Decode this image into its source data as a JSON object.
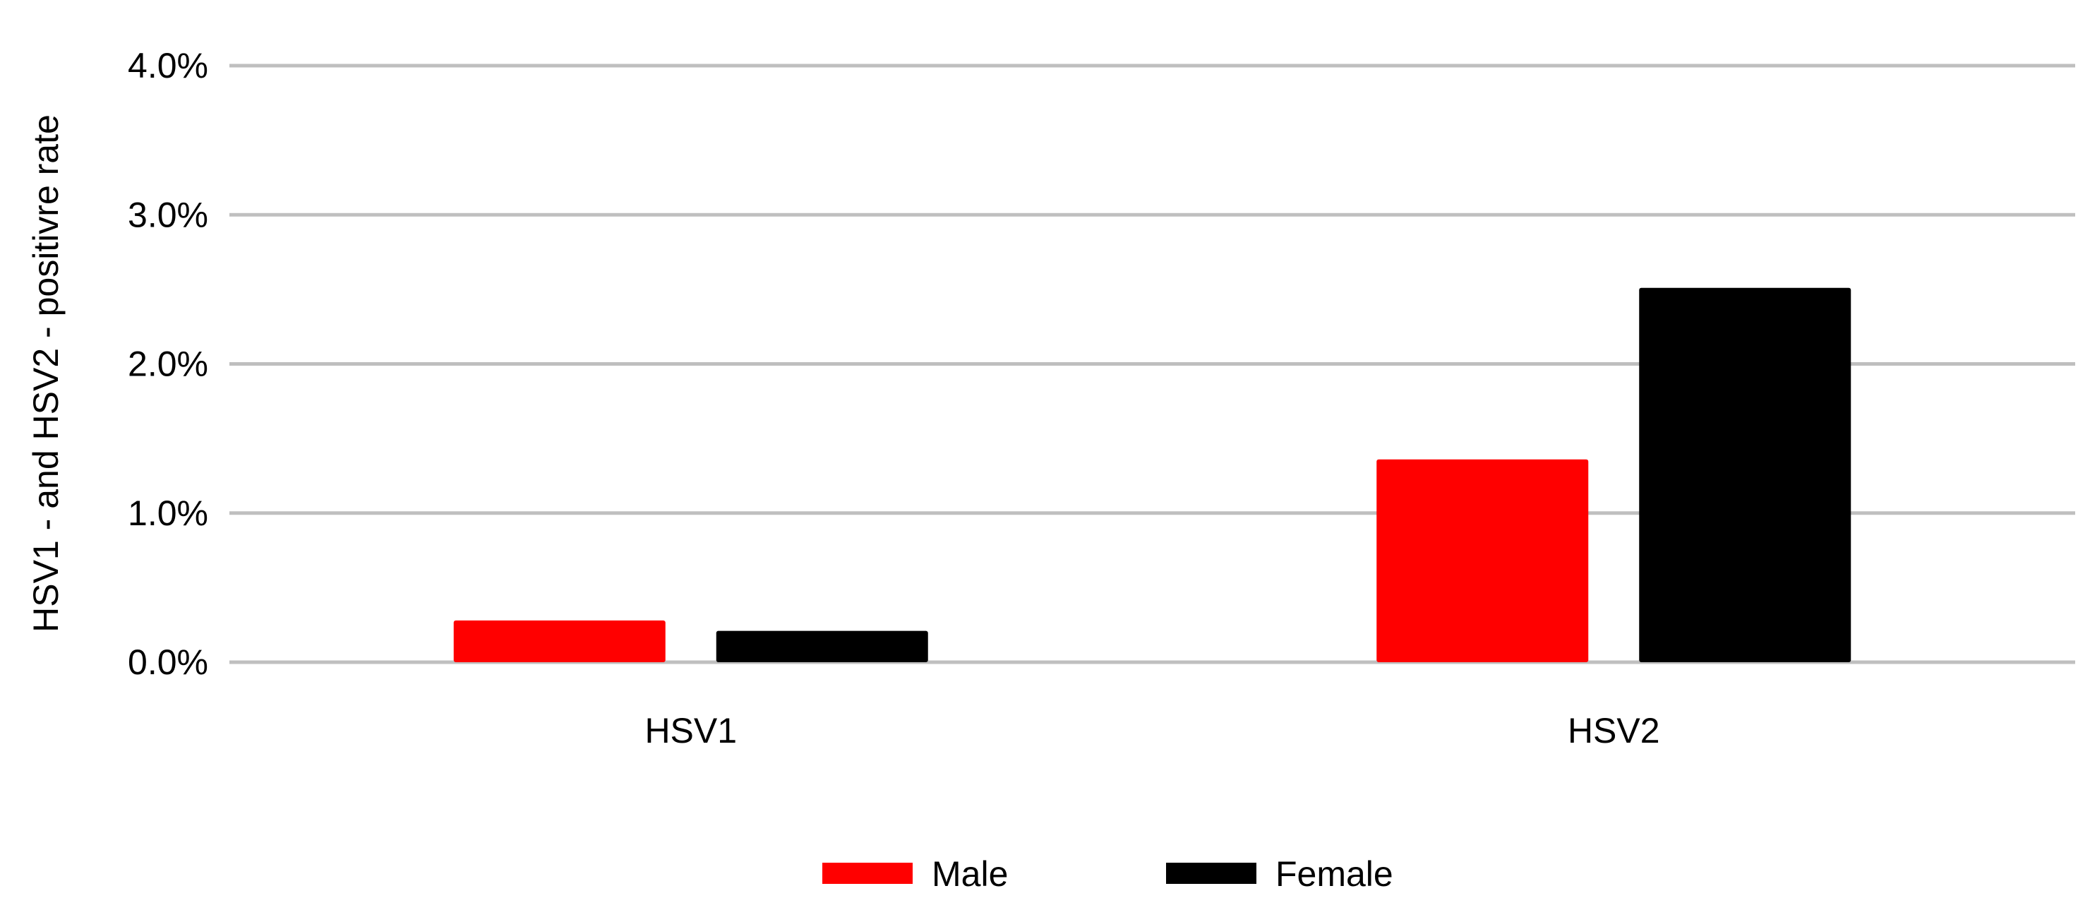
{
  "chart_data": {
    "type": "bar",
    "title": "",
    "xlabel": "",
    "ylabel": "HSV1 - and HSV2 - positivre rate",
    "categories": [
      "HSV1",
      "HSV2"
    ],
    "series": [
      {
        "name": "Male",
        "color": "#ff0000",
        "values": [
          0.28,
          1.36
        ]
      },
      {
        "name": "Female",
        "color": "#000000",
        "values": [
          0.21,
          2.51
        ]
      }
    ],
    "value_unit": "%",
    "ylim": [
      0,
      4
    ],
    "yticks": [
      0,
      1,
      2,
      3,
      4
    ],
    "ytick_labels": [
      "0.0%",
      "1.0%",
      "2.0%",
      "3.0%",
      "4.0%"
    ],
    "grid": true,
    "gridline_color": "#bfbfbf",
    "legend_position": "bottom"
  }
}
